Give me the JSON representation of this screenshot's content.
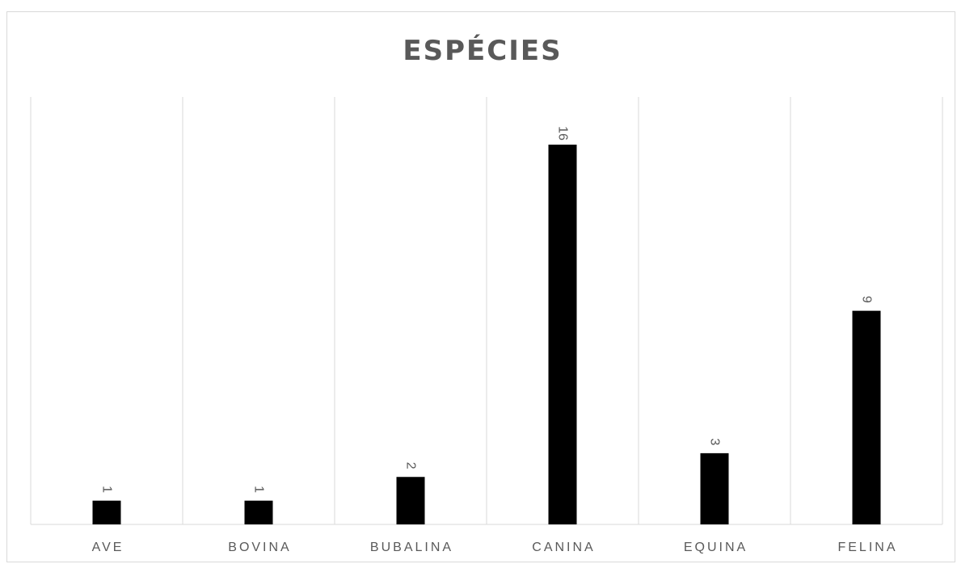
{
  "chart_data": {
    "type": "bar",
    "title": "ESPÉCIES",
    "xlabel": "",
    "ylabel": "",
    "categories": [
      "AVE",
      "BOVINA",
      "BUBALINA",
      "CANINA",
      "EQUINA",
      "FELINA"
    ],
    "values": [
      1,
      1,
      2,
      16,
      3,
      9
    ],
    "ylim": [
      0,
      16
    ],
    "grid": "vertical",
    "legend": "none",
    "data_labels": "rotated",
    "colors": {
      "bar": "#000000",
      "gridline": "#d9d9d9",
      "axis_line": "#d9d9d9",
      "text": "#595959",
      "border": "#d9d9d9"
    }
  }
}
